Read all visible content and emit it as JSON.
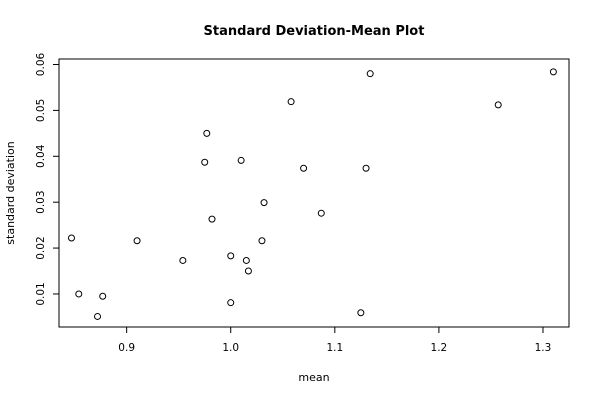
{
  "chart_data": {
    "type": "scatter",
    "title": "Standard Deviation-Mean Plot",
    "xlabel": "mean",
    "ylabel": "standard deviation",
    "xlim": [
      0.835,
      1.325
    ],
    "ylim": [
      0.0028,
      0.0612
    ],
    "xticks": [
      0.9,
      1.0,
      1.1,
      1.2,
      1.3
    ],
    "xtick_labels": [
      "0.9",
      "1.0",
      "1.1",
      "1.2",
      "1.3"
    ],
    "yticks": [
      0.01,
      0.02,
      0.03,
      0.04,
      0.05,
      0.06
    ],
    "ytick_labels": [
      "0.01",
      "0.02",
      "0.03",
      "0.04",
      "0.05",
      "0.06"
    ],
    "grid": false,
    "marker_color": "#000000",
    "points": [
      {
        "x": 0.847,
        "y": 0.0222
      },
      {
        "x": 0.854,
        "y": 0.01
      },
      {
        "x": 0.872,
        "y": 0.0051
      },
      {
        "x": 0.877,
        "y": 0.0095
      },
      {
        "x": 0.91,
        "y": 0.0216
      },
      {
        "x": 0.954,
        "y": 0.0173
      },
      {
        "x": 0.975,
        "y": 0.0387
      },
      {
        "x": 0.977,
        "y": 0.045
      },
      {
        "x": 0.982,
        "y": 0.0263
      },
      {
        "x": 1.0,
        "y": 0.0183
      },
      {
        "x": 1.0,
        "y": 0.0081
      },
      {
        "x": 1.01,
        "y": 0.0391
      },
      {
        "x": 1.015,
        "y": 0.0173
      },
      {
        "x": 1.017,
        "y": 0.015
      },
      {
        "x": 1.03,
        "y": 0.0216
      },
      {
        "x": 1.032,
        "y": 0.0299
      },
      {
        "x": 1.058,
        "y": 0.0519
      },
      {
        "x": 1.07,
        "y": 0.0374
      },
      {
        "x": 1.087,
        "y": 0.0276
      },
      {
        "x": 1.125,
        "y": 0.0059
      },
      {
        "x": 1.13,
        "y": 0.0374
      },
      {
        "x": 1.134,
        "y": 0.058
      },
      {
        "x": 1.257,
        "y": 0.0512
      },
      {
        "x": 1.31,
        "y": 0.0584
      }
    ]
  }
}
